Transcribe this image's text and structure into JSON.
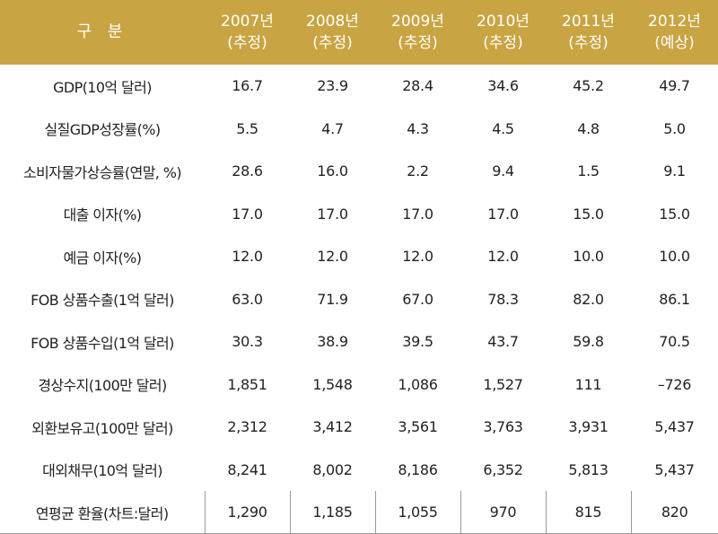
{
  "table": {
    "header": {
      "label": "구 분",
      "columns": [
        {
          "year": "2007년",
          "note": "(추정)"
        },
        {
          "year": "2008년",
          "note": "(추정)"
        },
        {
          "year": "2009년",
          "note": "(추정)"
        },
        {
          "year": "2010년",
          "note": "(추정)"
        },
        {
          "year": "2011년",
          "note": "(추정)"
        },
        {
          "year": "2012년",
          "note": "(예상)"
        }
      ]
    },
    "rows": [
      {
        "label": "GDP(10억 달러)",
        "values": [
          "16.7",
          "23.9",
          "28.4",
          "34.6",
          "45.2",
          "49.7"
        ]
      },
      {
        "label": "실질GDP성장률(%)",
        "values": [
          "5.5",
          "4.7",
          "4.3",
          "4.5",
          "4.8",
          "5.0"
        ]
      },
      {
        "label": "소비자물가상승률(연말, %)",
        "values": [
          "28.6",
          "16.0",
          "2.2",
          "9.4",
          "1.5",
          "9.1"
        ]
      },
      {
        "label": "대출 이자(%)",
        "values": [
          "17.0",
          "17.0",
          "17.0",
          "17.0",
          "15.0",
          "15.0"
        ]
      },
      {
        "label": "예금 이자(%)",
        "values": [
          "12.0",
          "12.0",
          "12.0",
          "12.0",
          "10.0",
          "10.0"
        ]
      },
      {
        "label": "FOB 상품수출(1억 달러)",
        "values": [
          "63.0",
          "71.9",
          "67.0",
          "78.3",
          "82.0",
          "86.1"
        ]
      },
      {
        "label": "FOB 상품수입(1억 달러)",
        "values": [
          "30.3",
          "38.9",
          "39.5",
          "43.7",
          "59.8",
          "70.5"
        ]
      },
      {
        "label": "경상수지(100만 달러)",
        "values": [
          "1,851",
          "1,548",
          "1,086",
          "1,527",
          "111",
          "–726"
        ]
      },
      {
        "label": "외환보유고(100만 달러)",
        "values": [
          "2,312",
          "3,412",
          "3,561",
          "3,763",
          "3,931",
          "5,437"
        ]
      },
      {
        "label": "대외채무(10억 달러)",
        "values": [
          "8,241",
          "8,002",
          "8,186",
          "6,352",
          "5,813",
          "5,437"
        ]
      },
      {
        "label": "연평균 환율(차트:달러)",
        "values": [
          "1,290",
          "1,185",
          "1,055",
          "970",
          "815",
          "820"
        ]
      }
    ]
  }
}
